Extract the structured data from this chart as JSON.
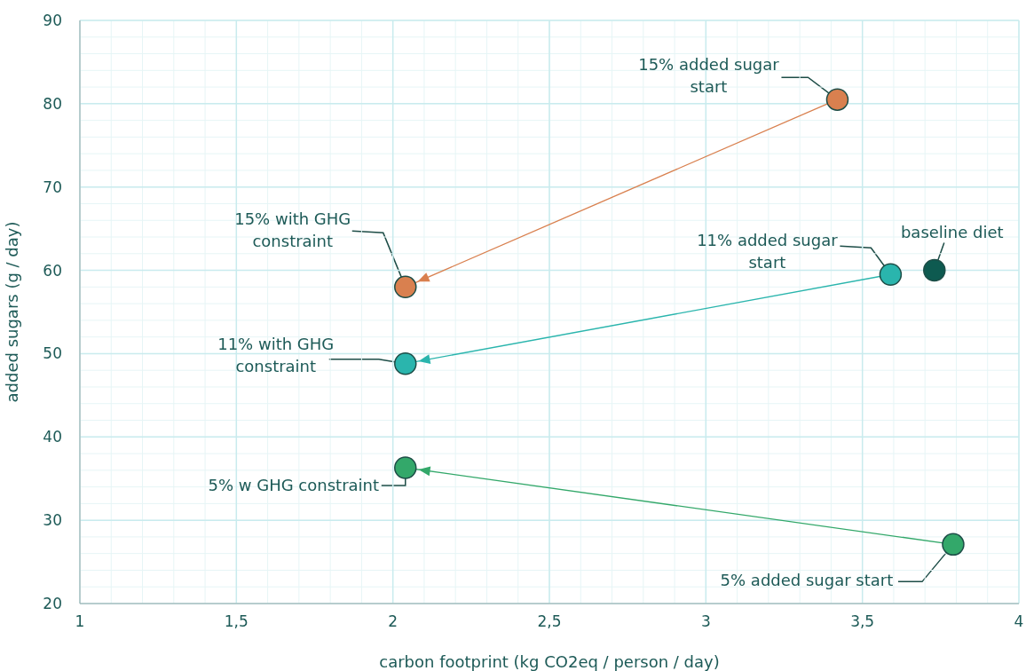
{
  "chart_data": {
    "type": "scatter",
    "xlabel": "carbon footprint (kg CO2eq / person / day)",
    "ylabel": "added sugars (g / day)",
    "xlim": [
      1,
      4
    ],
    "xticks": [
      1,
      {
        "value": 1.5,
        "label": "1,5"
      },
      2,
      {
        "value": 2.5,
        "label": "2,5"
      },
      3,
      {
        "value": 3.5,
        "label": "3,5"
      },
      4
    ],
    "ylim": [
      20,
      90
    ],
    "yticks": [
      20,
      30,
      40,
      50,
      60,
      70,
      80,
      90
    ],
    "grid": true,
    "marker": "circle",
    "series": [
      {
        "type": "line",
        "color": "#d9804f",
        "x": [
          3.42,
          2.04
        ],
        "values": [
          80.5,
          58.0
        ]
      },
      {
        "type": "line",
        "color": "#2ab5ad",
        "x": [
          3.59,
          2.04
        ],
        "values": [
          59.5,
          48.8
        ]
      },
      {
        "type": "line",
        "color": "#33a86a",
        "x": [
          3.79,
          2.04
        ],
        "values": [
          27.1,
          36.3
        ]
      },
      {
        "color": "#0e5a50",
        "x": [
          3.73
        ],
        "values": [
          60.0
        ]
      }
    ],
    "annotations": [
      {
        "text": "15% added sugar start",
        "x": 3.42,
        "y": 80.5
      },
      {
        "text": "15% with GHG constraint",
        "x": 2.04,
        "y": 58.0
      },
      {
        "text": "11% added sugar start",
        "x": 3.59,
        "y": 59.5
      },
      {
        "text": "baseline diet",
        "x": 3.73,
        "y": 60.0
      },
      "11% with GHG constraint",
      {
        "text": "5% w GHG constraint",
        "x": 2.04,
        "y": 36.3
      },
      {
        "text": "5% added sugar start",
        "x": 3.79,
        "y": 27.1
      }
    ]
  }
}
